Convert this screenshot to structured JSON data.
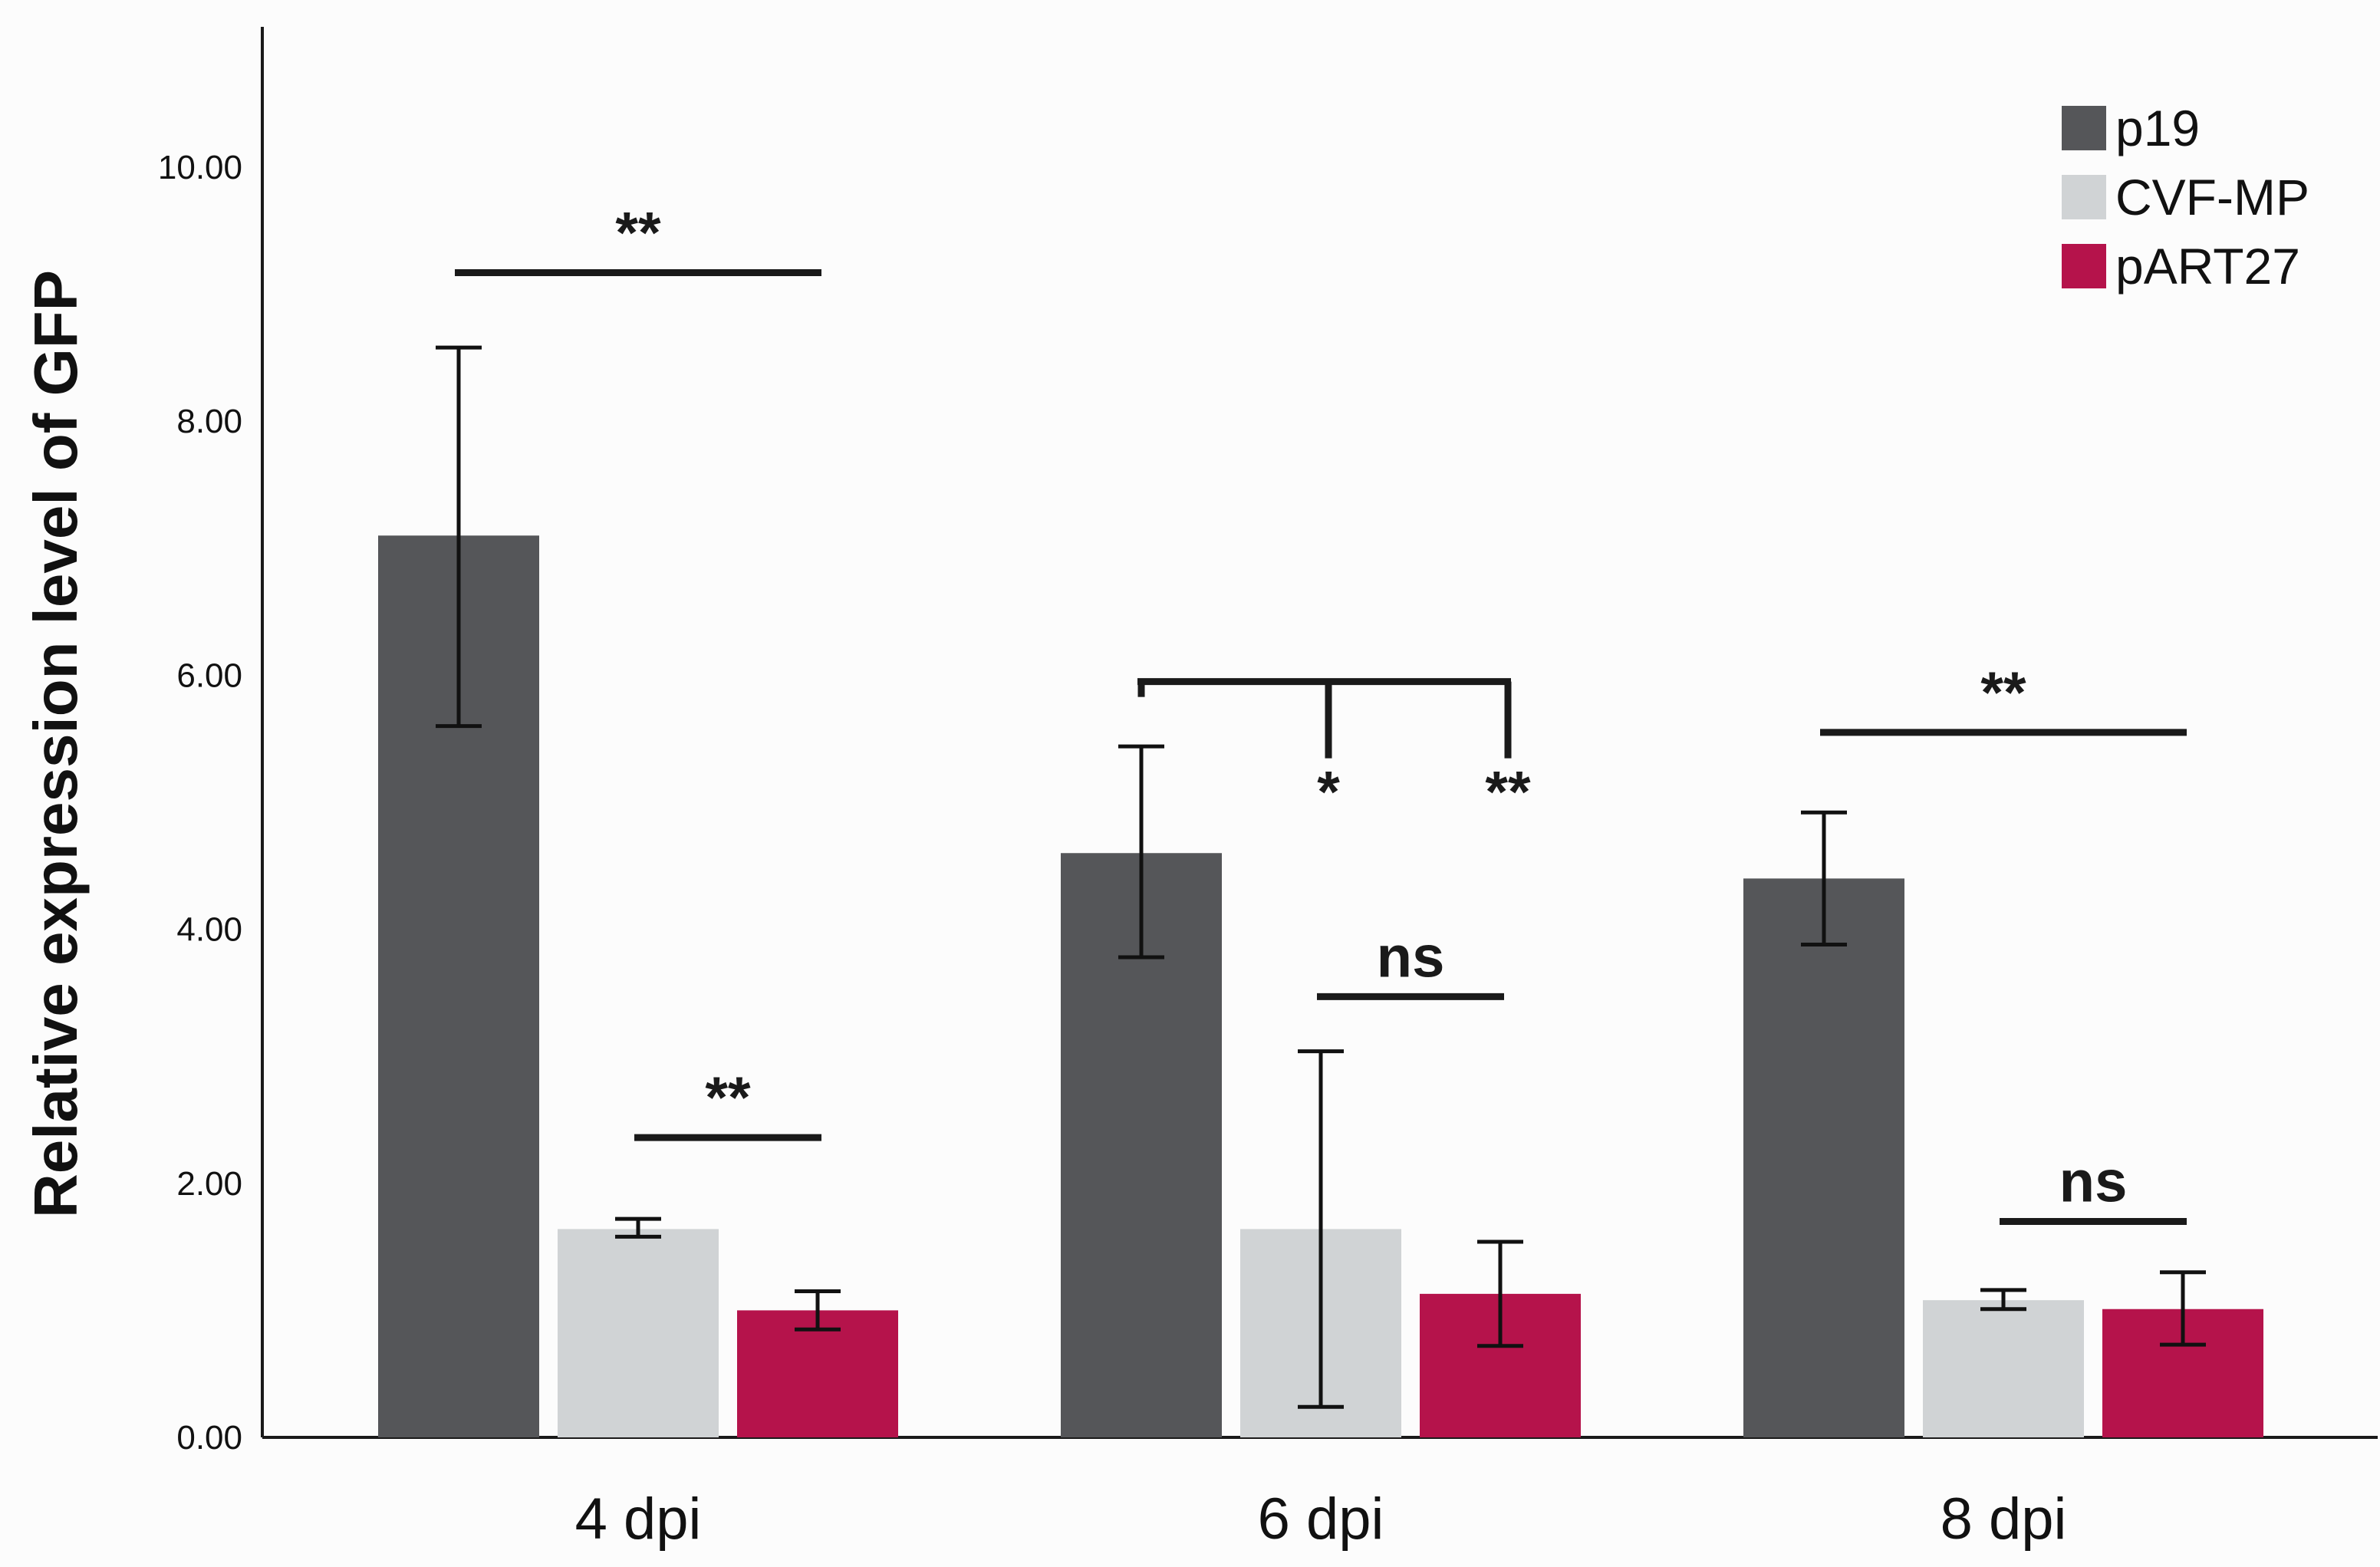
{
  "chart_data": {
    "type": "bar",
    "title": "",
    "xlabel": "",
    "ylabel": "Relative expression level of GFP",
    "ylim": [
      0,
      11
    ],
    "yticks": [
      0,
      2,
      4,
      6,
      8,
      10
    ],
    "ytick_labels": [
      "0.00",
      "2.00",
      "4.00",
      "6.00",
      "8.00",
      "10.00"
    ],
    "grid": false,
    "legend_position": "top-right",
    "categories": [
      "4 dpi",
      "6 dpi",
      "8 dpi"
    ],
    "series": [
      {
        "name": "p19",
        "color": "#555659",
        "values": [
          7.1,
          4.6,
          4.4
        ],
        "error_low": [
          5.6,
          3.78,
          3.88
        ],
        "error_high": [
          8.58,
          5.44,
          4.92
        ]
      },
      {
        "name": "CVF-MP",
        "color": "#d0d3d5",
        "values": [
          1.64,
          1.64,
          1.08
        ],
        "error_low": [
          1.58,
          0.24,
          1.01
        ],
        "error_high": [
          1.72,
          3.04,
          1.16
        ]
      },
      {
        "name": "pART27",
        "color": "#b5134b",
        "values": [
          1.0,
          1.13,
          1.01
        ],
        "error_low": [
          0.85,
          0.72,
          0.73
        ],
        "error_high": [
          1.15,
          1.54,
          1.3
        ]
      }
    ],
    "significance": [
      {
        "group": 0,
        "type": "line",
        "from_series": 0,
        "to_series": 2,
        "y": 9.17,
        "label": "**"
      },
      {
        "group": 0,
        "type": "line",
        "from_series": 1,
        "to_series": 2,
        "y": 2.36,
        "label": "**"
      },
      {
        "group": 1,
        "type": "bracket",
        "from_series": 0,
        "y": 5.95,
        "drops": [
          {
            "series": 1,
            "label": "*"
          },
          {
            "series": 2,
            "label": "**"
          }
        ]
      },
      {
        "group": 1,
        "type": "line",
        "from_series": 1,
        "to_series": 2,
        "y": 3.47,
        "label": "ns"
      },
      {
        "group": 2,
        "type": "line",
        "from_series": 0,
        "to_series": 2,
        "y": 5.55,
        "label": "**"
      },
      {
        "group": 2,
        "type": "line",
        "from_series": 1,
        "to_series": 2,
        "y": 1.7,
        "label": "ns"
      }
    ]
  }
}
